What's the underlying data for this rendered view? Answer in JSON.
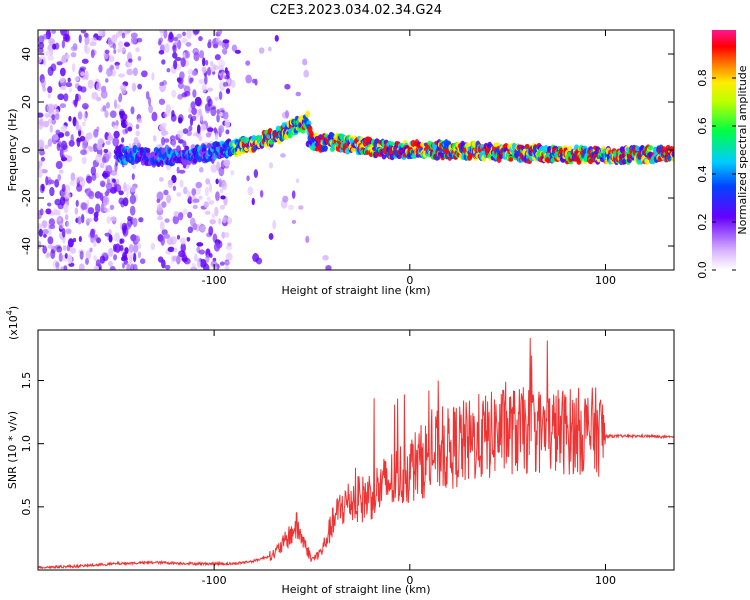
{
  "figure": {
    "title": "C2E3.2023.034.02.34.G24"
  },
  "chart_data": [
    {
      "type": "heatmap",
      "xlabel": "Height of straight line (km)",
      "ylabel": "Frequency (Hz)",
      "xlim": [
        -190,
        135
      ],
      "ylim": [
        -50,
        50
      ],
      "xticks": [
        -100,
        0,
        100
      ],
      "yticks": [
        -40,
        -20,
        0,
        20,
        40
      ],
      "colorbar": {
        "label": "Normalized spectral amplitude",
        "range": [
          0,
          1
        ],
        "ticks": [
          "0.0",
          "0.2",
          "0.4",
          "0.6",
          "0.8"
        ]
      },
      "ridge": [
        {
          "x": -150,
          "y": -2
        },
        {
          "x": -130,
          "y": -3
        },
        {
          "x": -110,
          "y": -2
        },
        {
          "x": -90,
          "y": 1
        },
        {
          "x": -75,
          "y": 4
        },
        {
          "x": -60,
          "y": 9
        },
        {
          "x": -52,
          "y": 12
        },
        {
          "x": -50,
          "y": 3
        },
        {
          "x": -40,
          "y": 3
        },
        {
          "x": -25,
          "y": 2
        },
        {
          "x": -10,
          "y": 0
        },
        {
          "x": 0,
          "y": 0
        },
        {
          "x": 20,
          "y": 0
        },
        {
          "x": 50,
          "y": -1
        },
        {
          "x": 80,
          "y": -2
        },
        {
          "x": 100,
          "y": -2
        },
        {
          "x": 120,
          "y": -2
        },
        {
          "x": 135,
          "y": -2
        }
      ]
    },
    {
      "type": "line",
      "xlabel": "Height of straight line (km)",
      "ylabel": "SNR (10 * v/v)",
      "yscale_label": "(x10",
      "yscale_exp": "4",
      "xlim": [
        -190,
        135
      ],
      "ylim": [
        0,
        1.9
      ],
      "xticks": [
        -100,
        0,
        100
      ],
      "yticks": [
        0.5,
        1.0,
        1.5
      ],
      "ytick_labels": [
        "0.5",
        "1.0",
        "1.5"
      ],
      "color": "#ee3333",
      "series": [
        {
          "x": [
            -190,
            -170,
            -150,
            -130,
            -110,
            -90,
            -80,
            -70,
            -65,
            -60,
            -58,
            -55,
            -50,
            -45,
            -40,
            -35,
            -30,
            -25,
            -20,
            -15,
            -10,
            -5,
            0,
            5,
            10,
            15,
            20,
            25,
            30,
            35,
            40,
            45,
            50,
            55,
            60,
            65,
            70,
            75,
            80,
            85,
            90,
            95,
            100,
            110,
            120,
            135
          ],
          "y": [
            0.02,
            0.03,
            0.05,
            0.06,
            0.05,
            0.05,
            0.07,
            0.12,
            0.2,
            0.3,
            0.35,
            0.25,
            0.08,
            0.15,
            0.35,
            0.5,
            0.55,
            0.55,
            0.6,
            0.65,
            0.7,
            0.75,
            0.8,
            0.85,
            0.9,
            0.95,
            0.95,
            1.0,
            1.0,
            1.05,
            1.05,
            1.1,
            1.1,
            1.1,
            1.1,
            1.1,
            1.1,
            1.1,
            1.1,
            1.1,
            1.1,
            1.1,
            1.06,
            1.06,
            1.06,
            1.05
          ]
        }
      ]
    }
  ]
}
